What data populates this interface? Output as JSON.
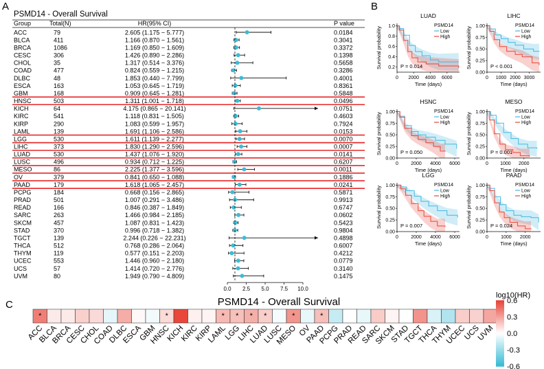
{
  "panels": {
    "a": "A",
    "b": "B",
    "c": "C"
  },
  "forest": {
    "title": "PSMD14 - Overall Survival",
    "headers": {
      "group": "Group",
      "total": "Total(N)",
      "hr": "HR(95% CI)",
      "p": "P value"
    },
    "axis_ticks": [
      "0.0",
      "2.5",
      "5.0",
      "7.5",
      "10.0"
    ],
    "highlight_color": "#e8272a",
    "marker_color": "#3bbcd6"
  },
  "km": {
    "ylabel": "Survival probability",
    "xlabel": "Time (days)",
    "legend_title": "PSMD14",
    "legend_low": "Low",
    "legend_high": "High",
    "low_color": "#43b8e0",
    "high_color": "#e8473a",
    "y_ticks": [
      "0.00",
      "0.25",
      "0.50",
      "0.75",
      "1.00"
    ],
    "y_ticks_luad": [
      "0.2",
      "0.4",
      "0.6",
      "0.8",
      "1.0"
    ],
    "plots": [
      {
        "title": "LUAD",
        "p": "P = 0.014",
        "xticks": [
          "0",
          "2000",
          "4000",
          "6000"
        ],
        "xmax": 7500
      },
      {
        "title": "LIHC",
        "p": "P < 0.001",
        "xticks": [
          "0",
          "1000",
          "2000",
          "3000"
        ],
        "xmax": 3800
      },
      {
        "title": "HSNC",
        "p": "P = 0.050",
        "xticks": [
          "0",
          "2000",
          "4000",
          "6000"
        ],
        "xmax": 6500
      },
      {
        "title": "MESO",
        "p": "P = 0.001",
        "xticks": [
          "0",
          "1000",
          "2000"
        ],
        "xmax": 2900
      },
      {
        "title": "LGG",
        "p": "P = 0.007",
        "xticks": [
          "0",
          "2000",
          "4000",
          "6000"
        ],
        "xmax": 6500
      },
      {
        "title": "PAAD",
        "p": "P = 0.024",
        "xticks": [
          "0",
          "1000",
          "2000"
        ],
        "xmax": 2800
      }
    ]
  },
  "heatmap": {
    "title": "PSMD14 - Overall Survival",
    "legend_title": "log10(HR)",
    "legend_ticks": [
      "0.6",
      "0.3",
      "0.0",
      "-0.3",
      "-0.6"
    ],
    "low_color": "#3bbcd6",
    "high_color": "#e8473a"
  },
  "chart_data": [
    {
      "type": "forest",
      "title": "PSMD14 - Overall Survival",
      "xlim": [
        0,
        10
      ],
      "rows": [
        {
          "group": "ACC",
          "n": "79",
          "hr_text": "2.605 (1.175 − 5.777)",
          "p": "0.0184",
          "hr": 2.605,
          "lo": 1.175,
          "hi": 5.777,
          "highlight": false
        },
        {
          "group": "BLCA",
          "n": "411",
          "hr_text": "1.166 (0.870 − 1.561)",
          "p": "0.3041",
          "hr": 1.166,
          "lo": 0.87,
          "hi": 1.561,
          "highlight": false
        },
        {
          "group": "BRCA",
          "n": "1086",
          "hr_text": "1.169 (0.850 − 1.609)",
          "p": "0.3372",
          "hr": 1.169,
          "lo": 0.85,
          "hi": 1.609,
          "highlight": false
        },
        {
          "group": "CESC",
          "n": "306",
          "hr_text": "1.426 (0.890 − 2.286)",
          "p": "0.1398",
          "hr": 1.426,
          "lo": 0.89,
          "hi": 2.286,
          "highlight": false
        },
        {
          "group": "CHOL",
          "n": "35",
          "hr_text": "1.317 (0.514 − 3.376)",
          "p": "0.5658",
          "hr": 1.317,
          "lo": 0.514,
          "hi": 3.376,
          "highlight": false
        },
        {
          "group": "COAD",
          "n": "477",
          "hr_text": "0.824 (0.559 − 1.215)",
          "p": "0.3286",
          "hr": 0.824,
          "lo": 0.559,
          "hi": 1.215,
          "highlight": false
        },
        {
          "group": "DLBC",
          "n": "48",
          "hr_text": "1.853 (0.440 − 7.799)",
          "p": "0.4001",
          "hr": 1.853,
          "lo": 0.44,
          "hi": 7.799,
          "highlight": false
        },
        {
          "group": "ESCA",
          "n": "163",
          "hr_text": "1.053 (0.645 − 1.719)",
          "p": "0.8361",
          "hr": 1.053,
          "lo": 0.645,
          "hi": 1.719,
          "highlight": false
        },
        {
          "group": "GBM",
          "n": "168",
          "hr_text": "0.909 (0.645 − 1.281)",
          "p": "0.5848",
          "hr": 0.909,
          "lo": 0.645,
          "hi": 1.281,
          "highlight": false
        },
        {
          "group": "HNSC",
          "n": "503",
          "hr_text": "1.311 (1.001 − 1.718)",
          "p": "0.0496",
          "hr": 1.311,
          "lo": 1.001,
          "hi": 1.718,
          "highlight": true
        },
        {
          "group": "KICH",
          "n": "64",
          "hr_text": "4.175 (0.865 − 20.141)",
          "p": "0.0751",
          "hr": 4.175,
          "lo": 0.865,
          "hi": 20.141,
          "highlight": false
        },
        {
          "group": "KIRC",
          "n": "541",
          "hr_text": "1.118 (0.831 − 1.505)",
          "p": "0.4603",
          "hr": 1.118,
          "lo": 0.831,
          "hi": 1.505,
          "highlight": false
        },
        {
          "group": "KIRP",
          "n": "290",
          "hr_text": "1.083 (0.599 − 1.957)",
          "p": "0.7924",
          "hr": 1.083,
          "lo": 0.599,
          "hi": 1.957,
          "highlight": false
        },
        {
          "group": "LAML",
          "n": "139",
          "hr_text": "1.691 (1.106 − 2.586)",
          "p": "0.0153",
          "hr": 1.691,
          "lo": 1.106,
          "hi": 2.586,
          "highlight": false
        },
        {
          "group": "LGG",
          "n": "530",
          "hr_text": "1.611 (1.139 − 2.277)",
          "p": "0.0070",
          "hr": 1.611,
          "lo": 1.139,
          "hi": 2.277,
          "highlight": true
        },
        {
          "group": "LIHC",
          "n": "373",
          "hr_text": "1.830 (1.290 − 2.596)",
          "p": "0.0007",
          "hr": 1.83,
          "lo": 1.29,
          "hi": 2.596,
          "highlight": true
        },
        {
          "group": "LUAD",
          "n": "530",
          "hr_text": "1.437 (1.076 − 1.920)",
          "p": "0.0141",
          "hr": 1.437,
          "lo": 1.076,
          "hi": 1.92,
          "highlight": true
        },
        {
          "group": "LUSC",
          "n": "496",
          "hr_text": "0.934 (0.712 − 1.225)",
          "p": "0.6207",
          "hr": 0.934,
          "lo": 0.712,
          "hi": 1.225,
          "highlight": false
        },
        {
          "group": "MESO",
          "n": "86",
          "hr_text": "2.225 (1.377 − 3.596)",
          "p": "0.0011",
          "hr": 2.225,
          "lo": 1.377,
          "hi": 3.596,
          "highlight": true
        },
        {
          "group": "OV",
          "n": "379",
          "hr_text": "0.841 (0.650 − 1.088)",
          "p": "0.1886",
          "hr": 0.841,
          "lo": 0.65,
          "hi": 1.088,
          "highlight": false
        },
        {
          "group": "PAAD",
          "n": "179",
          "hr_text": "1.618 (1.065 − 2.457)",
          "p": "0.0241",
          "hr": 1.618,
          "lo": 1.065,
          "hi": 2.457,
          "highlight": true
        },
        {
          "group": "PCPG",
          "n": "184",
          "hr_text": "0.668 (0.156 − 2.865)",
          "p": "0.5871",
          "hr": 0.668,
          "lo": 0.156,
          "hi": 2.865,
          "highlight": false
        },
        {
          "group": "PRAD",
          "n": "501",
          "hr_text": "1.007 (0.291 − 3.486)",
          "p": "0.9913",
          "hr": 1.007,
          "lo": 0.291,
          "hi": 3.486,
          "highlight": false
        },
        {
          "group": "READ",
          "n": "166",
          "hr_text": "0.846 (0.387 − 1.849)",
          "p": "0.6747",
          "hr": 0.846,
          "lo": 0.387,
          "hi": 1.849,
          "highlight": false
        },
        {
          "group": "SARC",
          "n": "263",
          "hr_text": "1.466 (0.984 − 2.185)",
          "p": "0.0602",
          "hr": 1.466,
          "lo": 0.984,
          "hi": 2.185,
          "highlight": false
        },
        {
          "group": "SKCM",
          "n": "457",
          "hr_text": "1.087 (0.831 − 1.423)",
          "p": "0.5423",
          "hr": 1.087,
          "lo": 0.831,
          "hi": 1.423,
          "highlight": false
        },
        {
          "group": "STAD",
          "n": "370",
          "hr_text": "0.996 (0.718 − 1.382)",
          "p": "0.9804",
          "hr": 0.996,
          "lo": 0.718,
          "hi": 1.382,
          "highlight": false
        },
        {
          "group": "TGCT",
          "n": "139",
          "hr_text": "2.244 (0.226 − 22.231)",
          "p": "0.4898",
          "hr": 2.244,
          "lo": 0.226,
          "hi": 22.231,
          "highlight": false
        },
        {
          "group": "THCA",
          "n": "512",
          "hr_text": "0.768 (0.286 − 2.064)",
          "p": "0.6007",
          "hr": 0.768,
          "lo": 0.286,
          "hi": 2.064,
          "highlight": false
        },
        {
          "group": "THYM",
          "n": "119",
          "hr_text": "0.577 (0.151 − 2.203)",
          "p": "0.4212",
          "hr": 0.577,
          "lo": 0.151,
          "hi": 2.203,
          "highlight": false
        },
        {
          "group": "UCEC",
          "n": "553",
          "hr_text": "1.446 (0.960 − 2.180)",
          "p": "0.0779",
          "hr": 1.446,
          "lo": 0.96,
          "hi": 2.18,
          "highlight": false
        },
        {
          "group": "UCS",
          "n": "57",
          "hr_text": "1.414 (0.720 − 2.776)",
          "p": "0.3140",
          "hr": 1.414,
          "lo": 0.72,
          "hi": 2.776,
          "highlight": false
        },
        {
          "group": "UVM",
          "n": "80",
          "hr_text": "1.949 (0.790 − 4.809)",
          "p": "0.1475",
          "hr": 1.949,
          "lo": 0.79,
          "hi": 4.809,
          "highlight": false
        }
      ]
    },
    {
      "type": "heatmap",
      "title": "PSMD14 - Overall Survival",
      "legend": "log10(HR)",
      "range": [
        -0.6,
        0.6
      ],
      "cells": [
        {
          "group": "ACC",
          "value": 0.416,
          "sig": true
        },
        {
          "group": "BLCA",
          "value": 0.067,
          "sig": false
        },
        {
          "group": "BRCA",
          "value": 0.068,
          "sig": false
        },
        {
          "group": "CESC",
          "value": 0.154,
          "sig": false
        },
        {
          "group": "CHOL",
          "value": 0.12,
          "sig": false
        },
        {
          "group": "COAD",
          "value": -0.084,
          "sig": false
        },
        {
          "group": "DLBC",
          "value": 0.268,
          "sig": false
        },
        {
          "group": "ESCA",
          "value": 0.022,
          "sig": false
        },
        {
          "group": "GBM",
          "value": -0.041,
          "sig": false
        },
        {
          "group": "HNSC",
          "value": 0.118,
          "sig": true
        },
        {
          "group": "KICH",
          "value": 0.621,
          "sig": false
        },
        {
          "group": "KIRC",
          "value": 0.048,
          "sig": false
        },
        {
          "group": "KIRP",
          "value": 0.035,
          "sig": false
        },
        {
          "group": "LAML",
          "value": 0.228,
          "sig": true
        },
        {
          "group": "LGG",
          "value": 0.207,
          "sig": true
        },
        {
          "group": "LIHC",
          "value": 0.262,
          "sig": true
        },
        {
          "group": "LUAD",
          "value": 0.157,
          "sig": true
        },
        {
          "group": "LUSC",
          "value": -0.03,
          "sig": false
        },
        {
          "group": "MESO",
          "value": 0.347,
          "sig": true
        },
        {
          "group": "OV",
          "value": -0.075,
          "sig": false
        },
        {
          "group": "PAAD",
          "value": 0.209,
          "sig": true
        },
        {
          "group": "PCPG",
          "value": -0.175,
          "sig": false
        },
        {
          "group": "PRAD",
          "value": 0.003,
          "sig": false
        },
        {
          "group": "READ",
          "value": -0.073,
          "sig": false
        },
        {
          "group": "SARC",
          "value": 0.166,
          "sig": false
        },
        {
          "group": "SKCM",
          "value": 0.036,
          "sig": false
        },
        {
          "group": "STAD",
          "value": -0.002,
          "sig": false
        },
        {
          "group": "TGCT",
          "value": 0.351,
          "sig": false
        },
        {
          "group": "THCA",
          "value": -0.115,
          "sig": false
        },
        {
          "group": "THYM",
          "value": -0.239,
          "sig": false
        },
        {
          "group": "UCEC",
          "value": 0.16,
          "sig": false
        },
        {
          "group": "UCS",
          "value": 0.15,
          "sig": false
        },
        {
          "group": "UVM",
          "value": 0.29,
          "sig": false
        }
      ]
    }
  ]
}
